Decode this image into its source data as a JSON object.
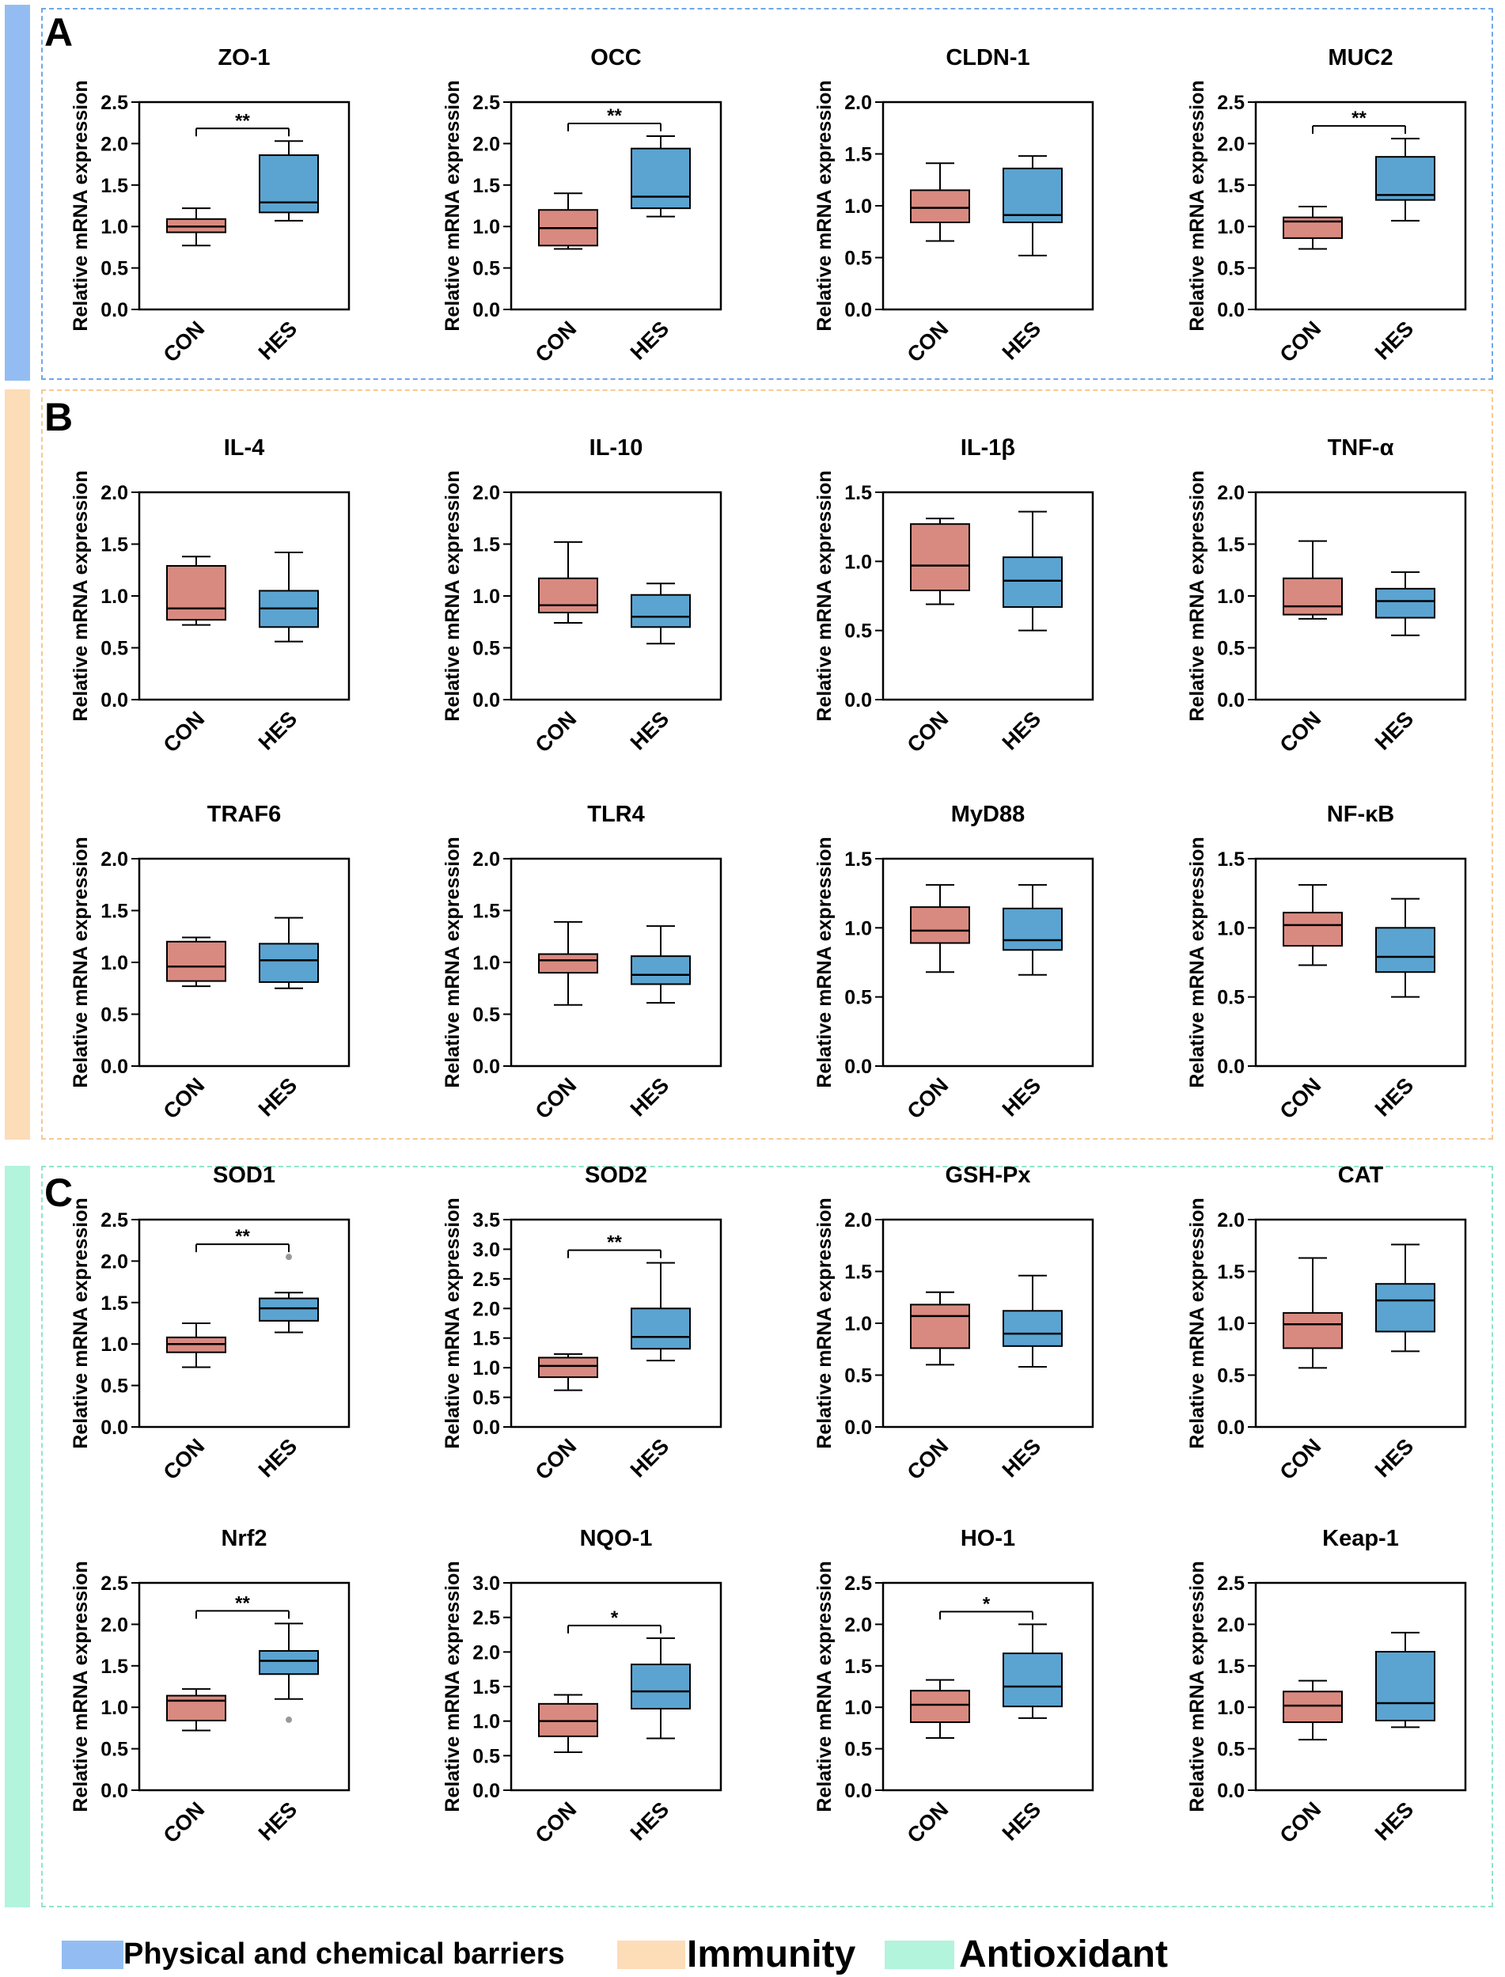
{
  "panels": [
    {
      "letter": "A",
      "color": "#93bdf2",
      "border": "#6fa8e8"
    },
    {
      "letter": "B",
      "color": "#fddcb8",
      "border": "#f5c992"
    },
    {
      "letter": "C",
      "color": "#b2f4dc",
      "border": "#8ee6c8"
    }
  ],
  "legend": {
    "barrier": "Physical and chemical barriers",
    "immunity": "Immunity",
    "antioxidant": "Antioxidant"
  },
  "colors": {
    "con": "#d98a80",
    "hes": "#5ba4d1"
  },
  "chart_data": [
    {
      "type": "box",
      "title": "ZO-1",
      "ylabel": "Relative mRNA expression",
      "categories": [
        "CON",
        "HES"
      ],
      "ylim": [
        0,
        2.5
      ],
      "yticks": [
        "0.0",
        "0.5",
        "1.0",
        "1.5",
        "2.0",
        "2.5"
      ],
      "boxes": [
        {
          "min": 0.77,
          "q1": 0.93,
          "median": 1.0,
          "q3": 1.09,
          "max": 1.22
        },
        {
          "min": 1.07,
          "q1": 1.17,
          "median": 1.29,
          "q3": 1.86,
          "max": 2.03
        }
      ],
      "outliers": [],
      "sig": "**"
    },
    {
      "type": "box",
      "title": "OCC",
      "ylabel": "Relative mRNA expression",
      "categories": [
        "CON",
        "HES"
      ],
      "ylim": [
        0,
        2.5
      ],
      "yticks": [
        "0.0",
        "0.5",
        "1.0",
        "1.5",
        "2.0",
        "2.5"
      ],
      "boxes": [
        {
          "min": 0.73,
          "q1": 0.77,
          "median": 0.98,
          "q3": 1.2,
          "max": 1.4
        },
        {
          "min": 1.12,
          "q1": 1.22,
          "median": 1.36,
          "q3": 1.94,
          "max": 2.09
        }
      ],
      "outliers": [],
      "sig": "**"
    },
    {
      "type": "box",
      "title": "CLDN-1",
      "ylabel": "Relative mRNA expression",
      "categories": [
        "CON",
        "HES"
      ],
      "ylim": [
        0,
        2.0
      ],
      "yticks": [
        "0.0",
        "0.5",
        "1.0",
        "1.5",
        "2.0"
      ],
      "boxes": [
        {
          "min": 0.66,
          "q1": 0.84,
          "median": 0.98,
          "q3": 1.15,
          "max": 1.41
        },
        {
          "min": 0.52,
          "q1": 0.84,
          "median": 0.91,
          "q3": 1.36,
          "max": 1.48
        }
      ],
      "outliers": [],
      "sig": ""
    },
    {
      "type": "box",
      "title": "MUC2",
      "ylabel": "Relative mRNA expression",
      "categories": [
        "CON",
        "HES"
      ],
      "ylim": [
        0,
        2.5
      ],
      "yticks": [
        "0.0",
        "0.5",
        "1.0",
        "1.5",
        "2.0",
        "2.5"
      ],
      "boxes": [
        {
          "min": 0.73,
          "q1": 0.86,
          "median": 1.06,
          "q3": 1.11,
          "max": 1.24
        },
        {
          "min": 1.07,
          "q1": 1.32,
          "median": 1.38,
          "q3": 1.84,
          "max": 2.06
        }
      ],
      "outliers": [],
      "sig": "**"
    },
    {
      "type": "box",
      "title": "IL-4",
      "ylabel": "Relative mRNA expression",
      "categories": [
        "CON",
        "HES"
      ],
      "ylim": [
        0,
        2.0
      ],
      "yticks": [
        "0.0",
        "0.5",
        "1.0",
        "1.5",
        "2.0"
      ],
      "boxes": [
        {
          "min": 0.72,
          "q1": 0.77,
          "median": 0.88,
          "q3": 1.29,
          "max": 1.38
        },
        {
          "min": 0.56,
          "q1": 0.7,
          "median": 0.88,
          "q3": 1.05,
          "max": 1.42
        }
      ],
      "outliers": [],
      "sig": ""
    },
    {
      "type": "box",
      "title": "IL-10",
      "ylabel": "Relative mRNA expression",
      "categories": [
        "CON",
        "HES"
      ],
      "ylim": [
        0,
        2.0
      ],
      "yticks": [
        "0.0",
        "0.5",
        "1.0",
        "1.5",
        "2.0"
      ],
      "boxes": [
        {
          "min": 0.74,
          "q1": 0.84,
          "median": 0.91,
          "q3": 1.17,
          "max": 1.52
        },
        {
          "min": 0.54,
          "q1": 0.7,
          "median": 0.8,
          "q3": 1.01,
          "max": 1.12
        }
      ],
      "outliers": [],
      "sig": ""
    },
    {
      "type": "box",
      "title": "IL-1β",
      "ylabel": "Relative mRNA expression",
      "categories": [
        "CON",
        "HES"
      ],
      "ylim": [
        0,
        1.5
      ],
      "yticks": [
        "0.0",
        "0.5",
        "1.0",
        "1.5"
      ],
      "boxes": [
        {
          "min": 0.69,
          "q1": 0.79,
          "median": 0.97,
          "q3": 1.27,
          "max": 1.31
        },
        {
          "min": 0.5,
          "q1": 0.67,
          "median": 0.86,
          "q3": 1.03,
          "max": 1.36
        }
      ],
      "outliers": [],
      "sig": ""
    },
    {
      "type": "box",
      "title": "TNF-α",
      "ylabel": "Relative mRNA expression",
      "categories": [
        "CON",
        "HES"
      ],
      "ylim": [
        0,
        2.0
      ],
      "yticks": [
        "0.0",
        "0.5",
        "1.0",
        "1.5",
        "2.0"
      ],
      "boxes": [
        {
          "min": 0.78,
          "q1": 0.82,
          "median": 0.9,
          "q3": 1.17,
          "max": 1.53
        },
        {
          "min": 0.62,
          "q1": 0.79,
          "median": 0.95,
          "q3": 1.07,
          "max": 1.23
        }
      ],
      "outliers": [],
      "sig": ""
    },
    {
      "type": "box",
      "title": "TRAF6",
      "ylabel": "Relative mRNA expression",
      "categories": [
        "CON",
        "HES"
      ],
      "ylim": [
        0,
        2.0
      ],
      "yticks": [
        "0.0",
        "0.5",
        "1.0",
        "1.5",
        "2.0"
      ],
      "boxes": [
        {
          "min": 0.77,
          "q1": 0.82,
          "median": 0.96,
          "q3": 1.2,
          "max": 1.24
        },
        {
          "min": 0.75,
          "q1": 0.81,
          "median": 1.02,
          "q3": 1.18,
          "max": 1.43
        }
      ],
      "outliers": [],
      "sig": ""
    },
    {
      "type": "box",
      "title": "TLR4",
      "ylabel": "Relative mRNA expression",
      "categories": [
        "CON",
        "HES"
      ],
      "ylim": [
        0,
        2.0
      ],
      "yticks": [
        "0.0",
        "0.5",
        "1.0",
        "1.5",
        "2.0"
      ],
      "boxes": [
        {
          "min": 0.59,
          "q1": 0.9,
          "median": 1.02,
          "q3": 1.08,
          "max": 1.39
        },
        {
          "min": 0.61,
          "q1": 0.79,
          "median": 0.88,
          "q3": 1.06,
          "max": 1.35
        }
      ],
      "outliers": [],
      "sig": ""
    },
    {
      "type": "box",
      "title": "MyD88",
      "ylabel": "Relative mRNA expression",
      "categories": [
        "CON",
        "HES"
      ],
      "ylim": [
        0,
        1.5
      ],
      "yticks": [
        "0.0",
        "0.5",
        "1.0",
        "1.5"
      ],
      "boxes": [
        {
          "min": 0.68,
          "q1": 0.89,
          "median": 0.98,
          "q3": 1.15,
          "max": 1.31
        },
        {
          "min": 0.66,
          "q1": 0.84,
          "median": 0.91,
          "q3": 1.14,
          "max": 1.31
        }
      ],
      "outliers": [],
      "sig": ""
    },
    {
      "type": "box",
      "title": "NF-κB",
      "ylabel": "Relative mRNA expression",
      "categories": [
        "CON",
        "HES"
      ],
      "ylim": [
        0,
        1.5
      ],
      "yticks": [
        "0.0",
        "0.5",
        "1.0",
        "1.5"
      ],
      "boxes": [
        {
          "min": 0.73,
          "q1": 0.87,
          "median": 1.02,
          "q3": 1.11,
          "max": 1.31
        },
        {
          "min": 0.5,
          "q1": 0.68,
          "median": 0.79,
          "q3": 1.0,
          "max": 1.21
        }
      ],
      "outliers": [],
      "sig": ""
    },
    {
      "type": "box",
      "title": "SOD1",
      "ylabel": "Relative mRNA expression",
      "categories": [
        "CON",
        "HES"
      ],
      "ylim": [
        0,
        2.5
      ],
      "yticks": [
        "0.0",
        "0.5",
        "1.0",
        "1.5",
        "2.0",
        "2.5"
      ],
      "boxes": [
        {
          "min": 0.72,
          "q1": 0.9,
          "median": 1.0,
          "q3": 1.08,
          "max": 1.25
        },
        {
          "min": 1.14,
          "q1": 1.28,
          "median": 1.43,
          "q3": 1.55,
          "max": 1.62
        }
      ],
      "outliers": [
        {
          "group": 1,
          "value": 2.05
        }
      ],
      "sig": "**"
    },
    {
      "type": "box",
      "title": "SOD2",
      "ylabel": "Relative mRNA expression",
      "categories": [
        "CON",
        "HES"
      ],
      "ylim": [
        0,
        3.5
      ],
      "yticks": [
        "0.0",
        "0.5",
        "1.0",
        "1.5",
        "2.0",
        "2.5",
        "3.0",
        "3.5"
      ],
      "boxes": [
        {
          "min": 0.62,
          "q1": 0.84,
          "median": 1.03,
          "q3": 1.17,
          "max": 1.23
        },
        {
          "min": 1.12,
          "q1": 1.32,
          "median": 1.52,
          "q3": 2.0,
          "max": 2.77
        }
      ],
      "outliers": [],
      "sig": "**"
    },
    {
      "type": "box",
      "title": "GSH-Px",
      "ylabel": "Relative mRNA expression",
      "categories": [
        "CON",
        "HES"
      ],
      "ylim": [
        0,
        2.0
      ],
      "yticks": [
        "0.0",
        "0.5",
        "1.0",
        "1.5",
        "2.0"
      ],
      "boxes": [
        {
          "min": 0.6,
          "q1": 0.76,
          "median": 1.07,
          "q3": 1.18,
          "max": 1.3
        },
        {
          "min": 0.58,
          "q1": 0.78,
          "median": 0.9,
          "q3": 1.12,
          "max": 1.46
        }
      ],
      "outliers": [],
      "sig": ""
    },
    {
      "type": "box",
      "title": "CAT",
      "ylabel": "Relative mRNA expression",
      "categories": [
        "CON",
        "HES"
      ],
      "ylim": [
        0,
        2.0
      ],
      "yticks": [
        "0.0",
        "0.5",
        "1.0",
        "1.5",
        "2.0"
      ],
      "boxes": [
        {
          "min": 0.57,
          "q1": 0.76,
          "median": 0.99,
          "q3": 1.1,
          "max": 1.63
        },
        {
          "min": 0.73,
          "q1": 0.92,
          "median": 1.22,
          "q3": 1.38,
          "max": 1.76
        }
      ],
      "outliers": [],
      "sig": ""
    },
    {
      "type": "box",
      "title": "Nrf2",
      "ylabel": "Relative mRNA expression",
      "categories": [
        "CON",
        "HES"
      ],
      "ylim": [
        0,
        2.5
      ],
      "yticks": [
        "0.0",
        "0.5",
        "1.0",
        "1.5",
        "2.0",
        "2.5"
      ],
      "boxes": [
        {
          "min": 0.72,
          "q1": 0.84,
          "median": 1.08,
          "q3": 1.14,
          "max": 1.22
        },
        {
          "min": 1.1,
          "q1": 1.4,
          "median": 1.56,
          "q3": 1.68,
          "max": 2.01
        }
      ],
      "outliers": [
        {
          "group": 1,
          "value": 0.85
        }
      ],
      "sig": "**"
    },
    {
      "type": "box",
      "title": "NQO-1",
      "ylabel": "Relative mRNA expression",
      "categories": [
        "CON",
        "HES"
      ],
      "ylim": [
        0,
        3.0
      ],
      "yticks": [
        "0.0",
        "0.5",
        "1.0",
        "1.5",
        "2.0",
        "2.5",
        "3.0"
      ],
      "boxes": [
        {
          "min": 0.55,
          "q1": 0.78,
          "median": 1.0,
          "q3": 1.25,
          "max": 1.38
        },
        {
          "min": 0.75,
          "q1": 1.18,
          "median": 1.43,
          "q3": 1.82,
          "max": 2.2
        }
      ],
      "outliers": [],
      "sig": "*"
    },
    {
      "type": "box",
      "title": "HO-1",
      "ylabel": "Relative mRNA expression",
      "categories": [
        "CON",
        "HES"
      ],
      "ylim": [
        0,
        2.5
      ],
      "yticks": [
        "0.0",
        "0.5",
        "1.0",
        "1.5",
        "2.0",
        "2.5"
      ],
      "boxes": [
        {
          "min": 0.63,
          "q1": 0.82,
          "median": 1.03,
          "q3": 1.2,
          "max": 1.33
        },
        {
          "min": 0.87,
          "q1": 1.01,
          "median": 1.25,
          "q3": 1.65,
          "max": 2.0
        }
      ],
      "outliers": [],
      "sig": "*"
    },
    {
      "type": "box",
      "title": "Keap-1",
      "ylabel": "Relative mRNA expression",
      "categories": [
        "CON",
        "HES"
      ],
      "ylim": [
        0,
        2.5
      ],
      "yticks": [
        "0.0",
        "0.5",
        "1.0",
        "1.5",
        "2.0",
        "2.5"
      ],
      "boxes": [
        {
          "min": 0.61,
          "q1": 0.82,
          "median": 1.02,
          "q3": 1.19,
          "max": 1.32
        },
        {
          "min": 0.76,
          "q1": 0.84,
          "median": 1.05,
          "q3": 1.67,
          "max": 1.9
        }
      ],
      "outliers": [],
      "sig": ""
    }
  ]
}
